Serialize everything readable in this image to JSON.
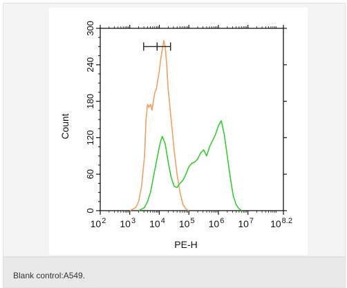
{
  "chart_data": {
    "type": "area",
    "xlabel": "PE-H",
    "ylabel": "Count",
    "x_scale": "log",
    "xlim": [
      2,
      8.2
    ],
    "ylim": [
      0,
      300
    ],
    "x_ticks": [
      {
        "base": "10",
        "exp": "2"
      },
      {
        "base": "10",
        "exp": "3"
      },
      {
        "base": "10",
        "exp": "4"
      },
      {
        "base": "10",
        "exp": "5"
      },
      {
        "base": "10",
        "exp": "6"
      },
      {
        "base": "10",
        "exp": "7"
      },
      {
        "base": "10",
        "exp": "8.2"
      }
    ],
    "x_tick_positions": [
      2,
      3,
      4,
      5,
      6,
      7,
      8.2
    ],
    "y_ticks": [
      "0",
      "60",
      "120",
      "180",
      "240",
      "300"
    ],
    "y_tick_values": [
      0,
      60,
      120,
      180,
      240,
      300
    ],
    "gate": {
      "x_start": 3.47,
      "x_end": 4.38,
      "y": 270
    },
    "grid": false,
    "series": [
      {
        "color": "#f0a060",
        "x": [
          3.0,
          3.2,
          3.3,
          3.4,
          3.5,
          3.55,
          3.6,
          3.65,
          3.7,
          3.75,
          3.8,
          3.85,
          3.9,
          3.95,
          4.0,
          4.05,
          4.1,
          4.15,
          4.2,
          4.25,
          4.3,
          4.4,
          4.5,
          4.6,
          4.7,
          4.8,
          4.9,
          5.0
        ],
        "y": [
          0,
          5,
          15,
          40,
          90,
          150,
          175,
          170,
          175,
          165,
          180,
          195,
          200,
          215,
          230,
          250,
          265,
          280,
          270,
          240,
          200,
          150,
          100,
          60,
          30,
          10,
          3,
          0
        ]
      },
      {
        "color": "#33cc33",
        "x": [
          3.3,
          3.5,
          3.6,
          3.7,
          3.8,
          3.9,
          4.0,
          4.05,
          4.1,
          4.2,
          4.3,
          4.4,
          4.5,
          4.6,
          4.7,
          4.8,
          4.9,
          5.0,
          5.1,
          5.2,
          5.3,
          5.4,
          5.5,
          5.6,
          5.7,
          5.8,
          5.9,
          6.0,
          6.1,
          6.2,
          6.3,
          6.4,
          6.5,
          6.6,
          6.7,
          6.8
        ],
        "y": [
          0,
          5,
          15,
          30,
          55,
          80,
          105,
          115,
          122,
          110,
          80,
          55,
          40,
          38,
          45,
          50,
          60,
          72,
          78,
          80,
          85,
          95,
          100,
          90,
          105,
          115,
          125,
          140,
          148,
          125,
          90,
          55,
          25,
          10,
          3,
          0
        ]
      }
    ]
  },
  "caption": "Blank control:A549."
}
